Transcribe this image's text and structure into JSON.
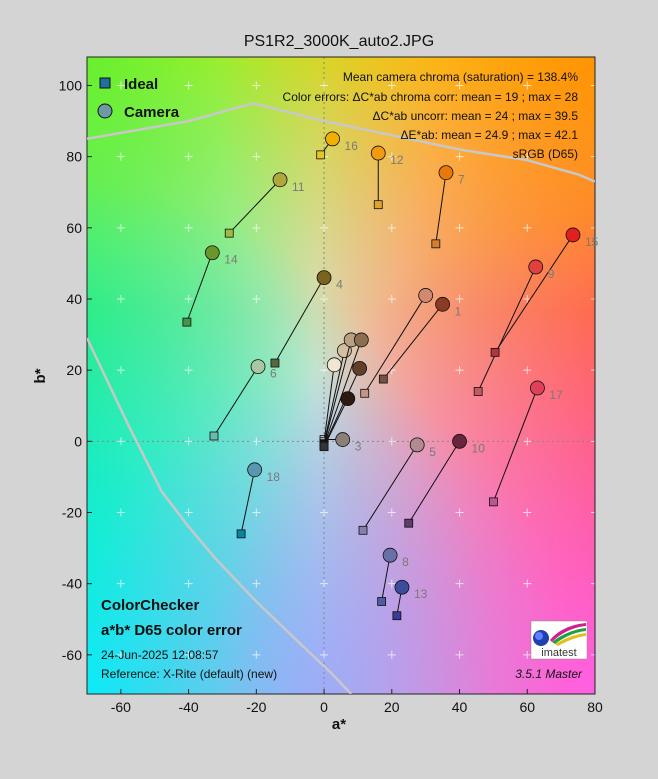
{
  "chart_data": {
    "type": "scatter",
    "title": "PS1R2_3000K_auto2.JPG",
    "xlabel": "a*",
    "ylabel": "b*",
    "xlim": [
      -70,
      80
    ],
    "ylim": [
      -71,
      108
    ],
    "xticks": [
      "-60",
      "-40",
      "-20",
      "0",
      "20",
      "40",
      "60",
      "80"
    ],
    "yticks": [
      "-60",
      "-40",
      "-20",
      "0",
      "20",
      "40",
      "60",
      "80",
      "100"
    ],
    "grid": true,
    "legend": {
      "position": "top-left",
      "ideal_label": "Ideal",
      "camera_label": "Camera"
    },
    "info_lines": [
      "Mean camera chroma (saturation) = 138.4%",
      "Color errors:  ΔC*ab chroma corr:  mean = 19 ;  max = 28",
      "ΔC*ab uncorr:  mean = 24 ;  max = 39.5",
      "ΔE*ab:  mean = 24.9 ;  max = 42.1",
      "sRGB (D65)"
    ],
    "bottom_left": {
      "line1": "ColorChecker",
      "line2": "a*b* D65 color error",
      "date": "24-Jun-2025 12:08:57",
      "reference": "Reference: X-Rite (default) (new)"
    },
    "version": "3.5.1  Master",
    "logo_text": "imatest",
    "gamut_boundary": [
      [
        -70,
        85
      ],
      [
        -40,
        90
      ],
      [
        -21,
        95
      ],
      [
        0,
        90
      ],
      [
        40,
        82
      ],
      [
        60,
        79
      ],
      [
        75,
        75
      ],
      [
        80,
        73
      ]
    ],
    "gamut_boundary_left": [
      [
        -70,
        29
      ],
      [
        -58,
        5
      ],
      [
        -48,
        -14
      ],
      [
        -40,
        -24
      ],
      [
        -32,
        -33
      ],
      [
        -20,
        -45
      ],
      [
        -8,
        -56
      ],
      [
        2,
        -65
      ],
      [
        8,
        -71
      ]
    ],
    "patches": [
      {
        "id": "1",
        "ideal": [
          17.5,
          17.5
        ],
        "camera": [
          35,
          38.5
        ],
        "ideal_color": "#735244",
        "camera_color": "#8b3a24",
        "label": true
      },
      {
        "id": "2",
        "ideal": [
          12,
          13.5
        ],
        "camera": [
          30,
          41
        ],
        "ideal_color": "#c29682",
        "camera_color": "#d08a70",
        "label": false
      },
      {
        "id": "3",
        "ideal": [
          0,
          0.5
        ],
        "camera": [
          5.5,
          0.5
        ],
        "ideal_color": "#c8c8c8",
        "camera_color": "#8a8078",
        "label": true
      },
      {
        "id": "4",
        "ideal": [
          -14.5,
          22
        ],
        "camera": [
          0,
          46
        ],
        "ideal_color": "#57683c",
        "camera_color": "#7a6220",
        "label": true
      },
      {
        "id": "5",
        "ideal": [
          11.5,
          -25
        ],
        "camera": [
          27.5,
          -1
        ],
        "ideal_color": "#8580b1",
        "camera_color": "#b48a92",
        "label": true
      },
      {
        "id": "6",
        "ideal": [
          -32.5,
          1.5
        ],
        "camera": [
          -19.5,
          21
        ],
        "ideal_color": "#67bdaa",
        "camera_color": "#a8c8a4",
        "label": true
      },
      {
        "id": "7",
        "ideal": [
          33,
          55.5
        ],
        "camera": [
          36,
          75.5
        ],
        "ideal_color": "#d67e2c",
        "camera_color": "#e8780a",
        "label": true
      },
      {
        "id": "8",
        "ideal": [
          17,
          -45
        ],
        "camera": [
          19.5,
          -32
        ],
        "ideal_color": "#505ba6",
        "camera_color": "#6870a8",
        "label": true
      },
      {
        "id": "9",
        "ideal": [
          45.5,
          14
        ],
        "camera": [
          62.5,
          49
        ],
        "ideal_color": "#c15a63",
        "camera_color": "#e04040",
        "label": true
      },
      {
        "id": "10",
        "ideal": [
          25,
          -23
        ],
        "camera": [
          40,
          0
        ],
        "ideal_color": "#5e3c6c",
        "camera_color": "#6a2440",
        "label": true
      },
      {
        "id": "11",
        "ideal": [
          -28,
          58.5
        ],
        "camera": [
          -13,
          73.5
        ],
        "ideal_color": "#9dbc40",
        "camera_color": "#b0a83a",
        "label": true
      },
      {
        "id": "12",
        "ideal": [
          16,
          66.5
        ],
        "camera": [
          16,
          81
        ],
        "ideal_color": "#e0a32e",
        "camera_color": "#f29a10",
        "label": true
      },
      {
        "id": "13",
        "ideal": [
          21.5,
          -49
        ],
        "camera": [
          23,
          -41
        ],
        "ideal_color": "#383d96",
        "camera_color": "#3c4c9a",
        "label": true
      },
      {
        "id": "14",
        "ideal": [
          -40.5,
          33.5
        ],
        "camera": [
          -33,
          53
        ],
        "ideal_color": "#469449",
        "camera_color": "#6a962a",
        "label": true
      },
      {
        "id": "15",
        "ideal": [
          50.5,
          25
        ],
        "camera": [
          73.5,
          58
        ],
        "ideal_color": "#af363c",
        "camera_color": "#e02020",
        "label": true
      },
      {
        "id": "16",
        "ideal": [
          -1,
          80.5
        ],
        "camera": [
          2.5,
          85
        ],
        "ideal_color": "#e7c71f",
        "camera_color": "#f0b000",
        "label": true
      },
      {
        "id": "17",
        "ideal": [
          50,
          -17
        ],
        "camera": [
          63,
          15
        ],
        "ideal_color": "#bb5695",
        "camera_color": "#e0405a",
        "label": true
      },
      {
        "id": "18",
        "ideal": [
          -24.5,
          -26
        ],
        "camera": [
          -20.5,
          -8
        ],
        "ideal_color": "#0885a1",
        "camera_color": "#5a96b0",
        "label": true
      },
      {
        "id": "19",
        "ideal": [
          0,
          0
        ],
        "camera": [
          3,
          21.5
        ],
        "ideal_color": "#f3f3f2",
        "camera_color": "#f2e6d2",
        "label": false
      },
      {
        "id": "20",
        "ideal": [
          0,
          -0.5
        ],
        "camera": [
          6,
          25.5
        ],
        "ideal_color": "#c8c8c8",
        "camera_color": "#d4bfa0",
        "label": false
      },
      {
        "id": "21",
        "ideal": [
          0,
          -0.8
        ],
        "camera": [
          8,
          28.5
        ],
        "ideal_color": "#a0a0a0",
        "camera_color": "#b8a080",
        "label": false
      },
      {
        "id": "22",
        "ideal": [
          0,
          -1
        ],
        "camera": [
          11,
          28.5
        ],
        "ideal_color": "#7a7a79",
        "camera_color": "#8a7050",
        "label": false
      },
      {
        "id": "23",
        "ideal": [
          0,
          -1.2
        ],
        "camera": [
          10.5,
          20.5
        ],
        "ideal_color": "#555555",
        "camera_color": "#604028",
        "label": false
      },
      {
        "id": "24",
        "ideal": [
          0,
          -1.5
        ],
        "camera": [
          7,
          12
        ],
        "ideal_color": "#343434",
        "camera_color": "#2a1a10",
        "label": false
      }
    ]
  }
}
